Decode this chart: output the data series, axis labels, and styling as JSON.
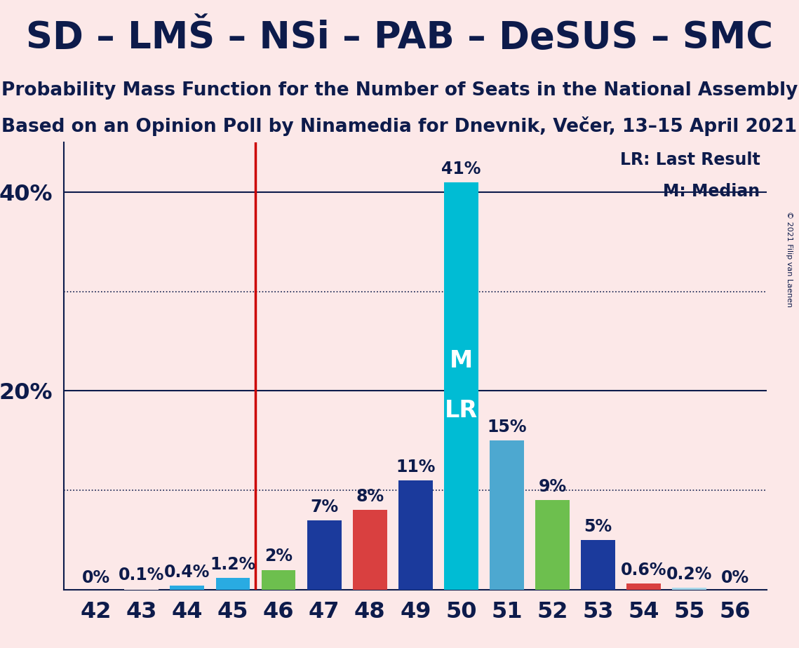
{
  "title1": "SD – LMŠ – NSi – PAB – DeSUS – SMC",
  "title2": "Probability Mass Function for the Number of Seats in the National Assembly",
  "title3": "Based on an Opinion Poll by Ninamedia for Dnevnik, Večer, 13–15 April 2021",
  "copyright": "© 2021 Filip van Laenen",
  "seats": [
    42,
    43,
    44,
    45,
    46,
    47,
    48,
    49,
    50,
    51,
    52,
    53,
    54,
    55,
    56
  ],
  "values": [
    0.0,
    0.1,
    0.4,
    1.2,
    2.0,
    7.0,
    8.0,
    11.0,
    41.0,
    15.0,
    9.0,
    5.0,
    0.6,
    0.2,
    0.0
  ],
  "labels": [
    "0%",
    "0.1%",
    "0.4%",
    "1.2%",
    "2%",
    "7%",
    "8%",
    "11%",
    "41%",
    "15%",
    "9%",
    "5%",
    "0.6%",
    "0.2%",
    "0%"
  ],
  "bar_colors": [
    "#fce8e8",
    "#fce8e8",
    "#29abe2",
    "#29abe2",
    "#6dbf4e",
    "#1b3a9c",
    "#d94040",
    "#1b3a9c",
    "#00bcd4",
    "#4da8d0",
    "#6dbf4e",
    "#1b3a9c",
    "#d94040",
    "#a8d8ea",
    "#fce8e8"
  ],
  "vline_x": 45.5,
  "vline_color": "#cc0000",
  "median_seat": 50,
  "lr_seat": 50,
  "lr_label": "LR: Last Result",
  "m_label": "M: Median",
  "background_color": "#fce8e8",
  "ylim": [
    0,
    45
  ],
  "hlines_solid": [
    20,
    40
  ],
  "hlines_dotted": [
    10,
    30
  ],
  "title1_fontsize": 38,
  "title2_fontsize": 19,
  "title3_fontsize": 19,
  "axis_fontsize": 23,
  "label_fontsize": 17,
  "bar_width": 0.75
}
